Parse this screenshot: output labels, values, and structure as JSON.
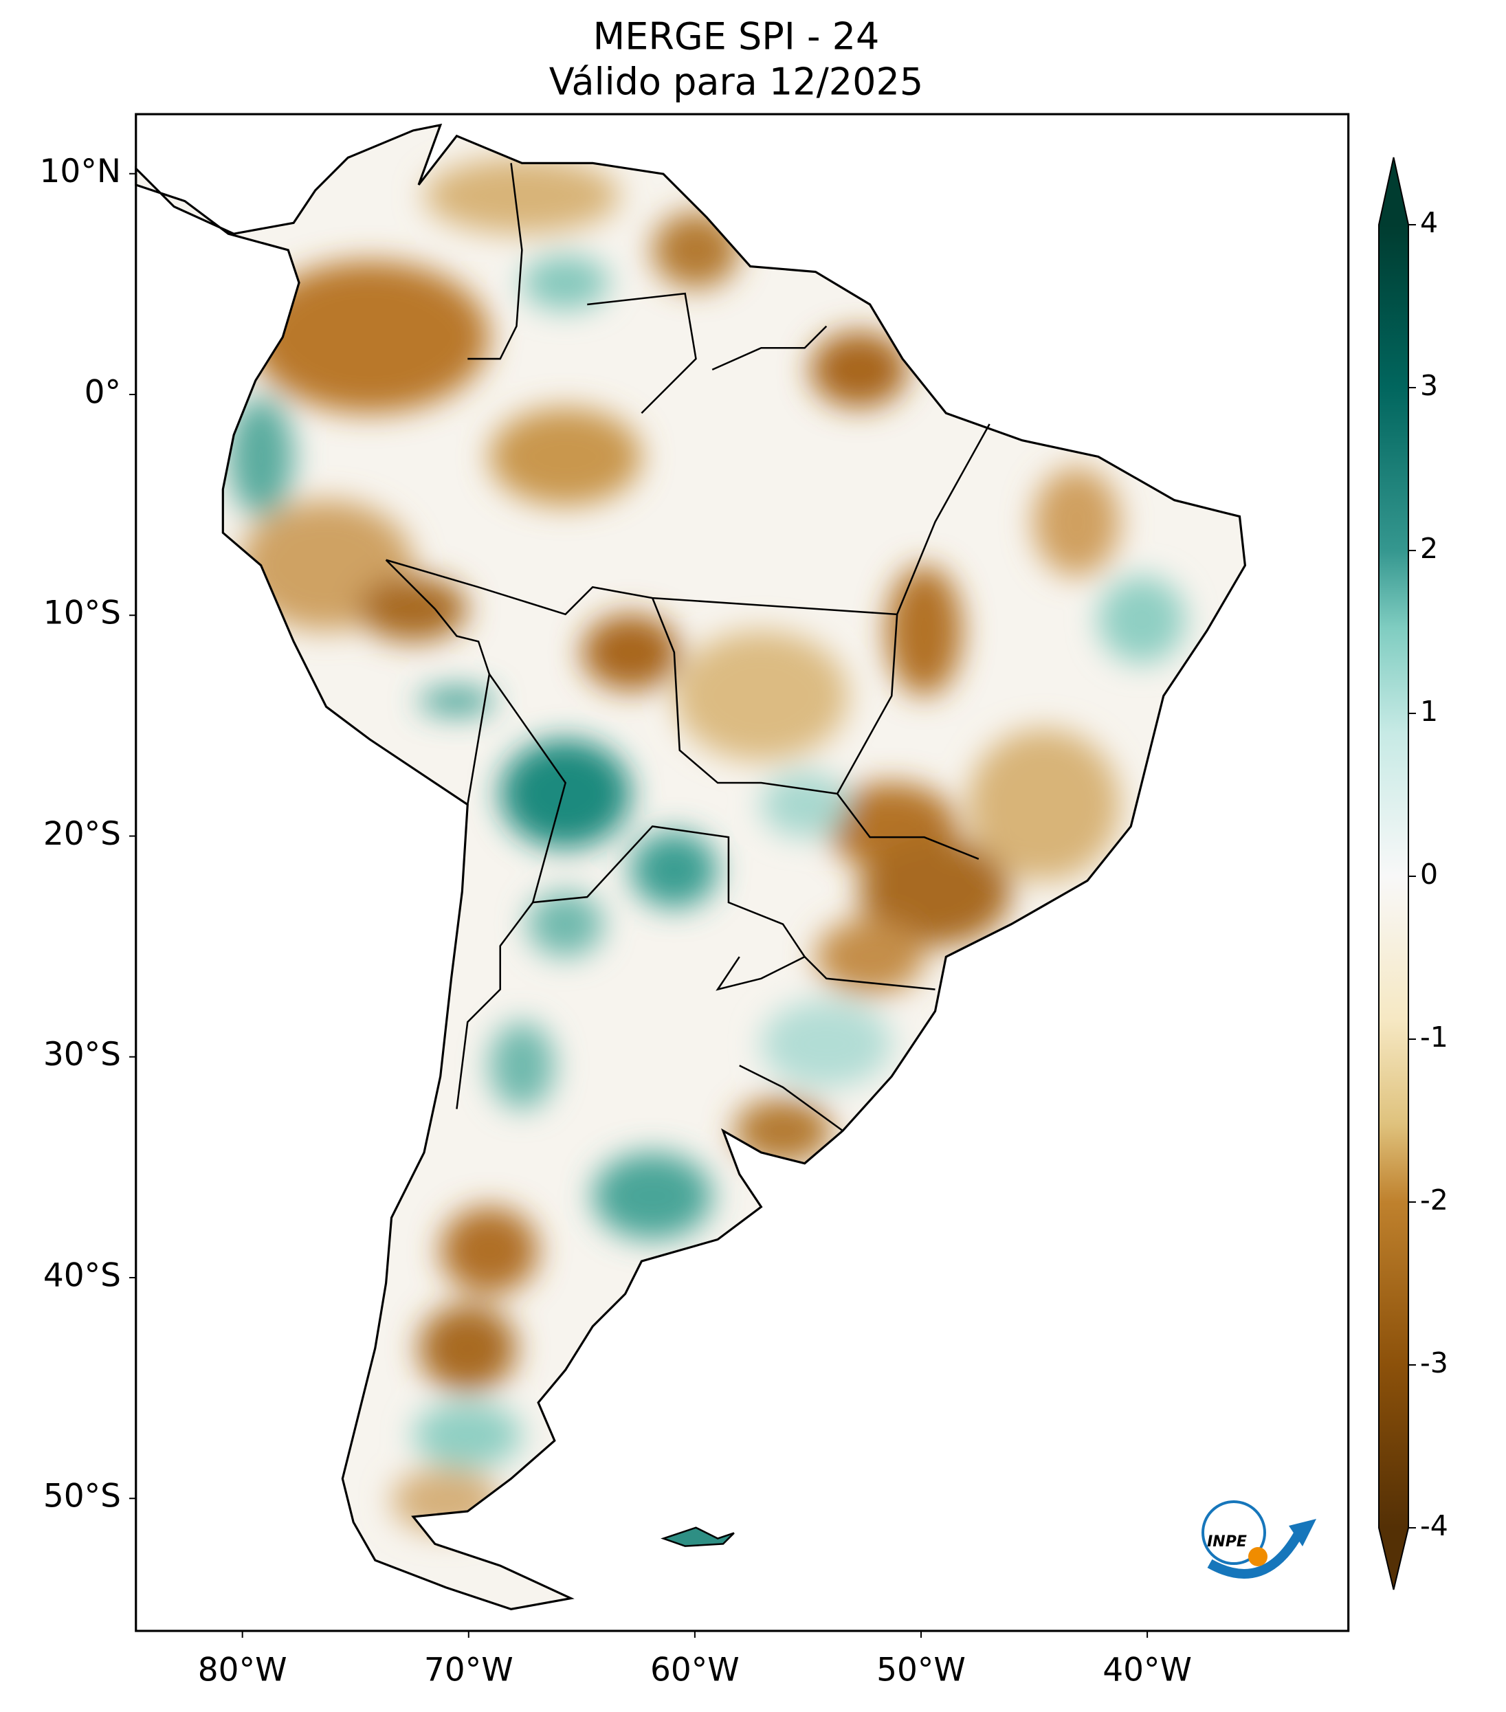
{
  "map": {
    "title": "MERGE   SPI - 24",
    "subtitle": "Válido para 12/2025",
    "lon_range": [
      -84.7,
      -31.1
    ],
    "lat_range": [
      -56.0,
      12.7
    ],
    "lon_ticks": [
      {
        "value": -80,
        "label": "80°W"
      },
      {
        "value": -70,
        "label": "70°W"
      },
      {
        "value": -60,
        "label": "60°W"
      },
      {
        "value": -50,
        "label": "50°W"
      },
      {
        "value": -40,
        "label": "40°W"
      }
    ],
    "lat_ticks": [
      {
        "value": 10,
        "label": "10°N"
      },
      {
        "value": 0,
        "label": "0°"
      },
      {
        "value": -10,
        "label": "10°S"
      },
      {
        "value": -20,
        "label": "20°S"
      },
      {
        "value": -30,
        "label": "30°S"
      },
      {
        "value": -40,
        "label": "40°S"
      },
      {
        "value": -50,
        "label": "50°S"
      }
    ],
    "colorbar_ticks": [
      4,
      3,
      2,
      1,
      0,
      -1,
      -2,
      -3,
      -4
    ],
    "logo": "INPE"
  }
}
